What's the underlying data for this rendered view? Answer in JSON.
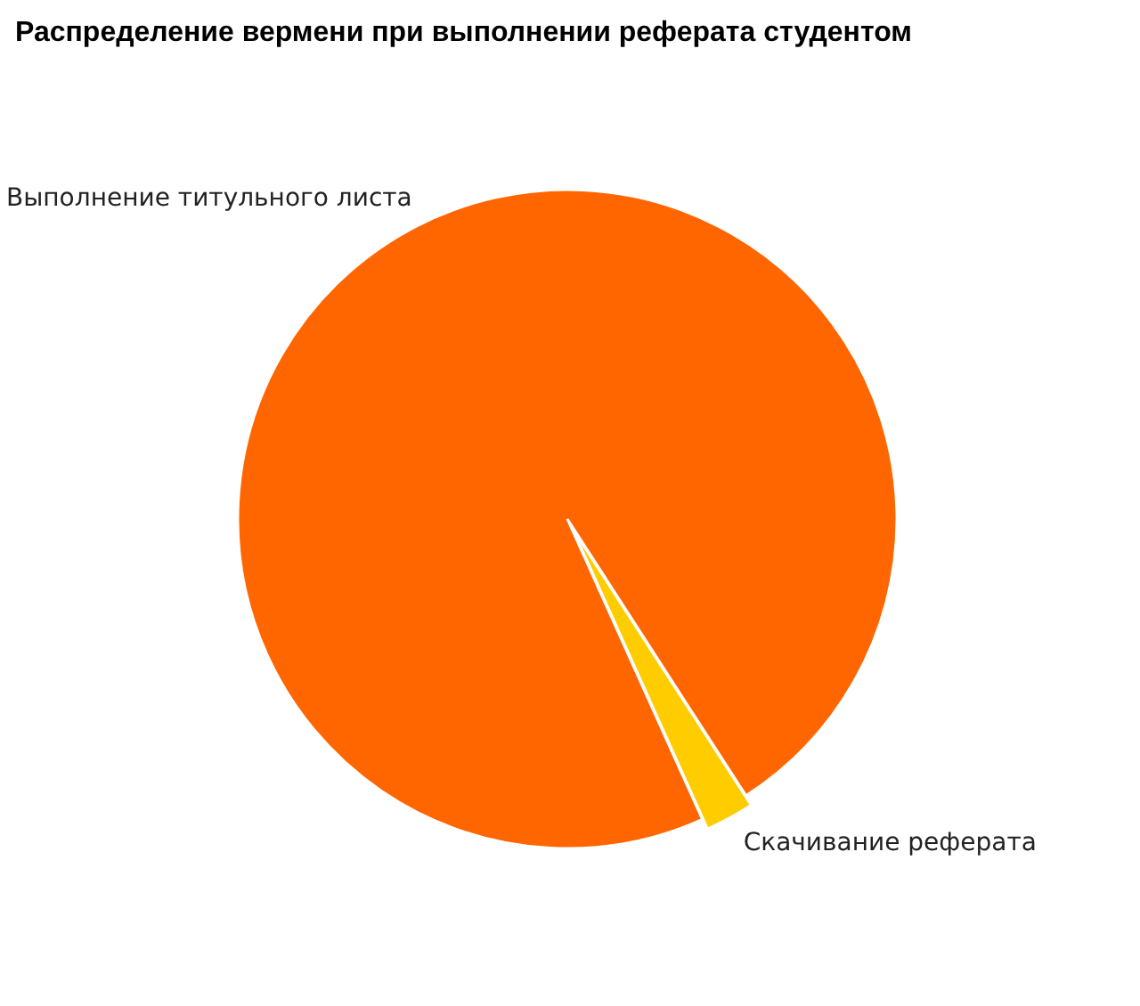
{
  "chart_data": {
    "type": "pie",
    "title": "Распределение вермени при выполнении реферата студентом",
    "categories": [
      "Выполнение титульного листа",
      "Скачивание реферата"
    ],
    "values": [
      97.6,
      2.4
    ],
    "colors": [
      "#ff6600",
      "#ffcc00"
    ]
  }
}
